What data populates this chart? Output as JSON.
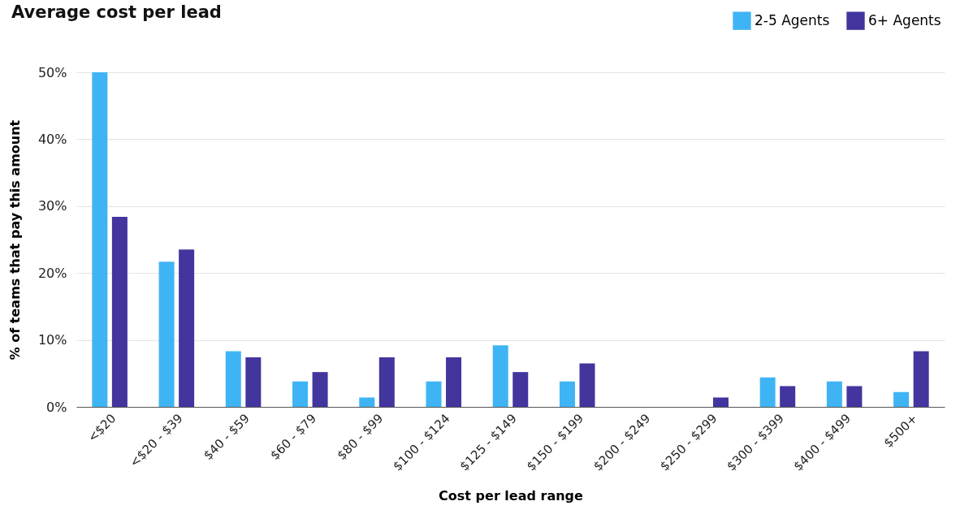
{
  "chart_data": {
    "type": "bar",
    "title": "Average cost per lead",
    "xlabel": "Cost per lead range",
    "ylabel": "% of teams that pay this amount",
    "categories": [
      "<$20",
      "<$20 - $39",
      "$40 - $59",
      "$60 - $79",
      "$80 - $99",
      "$100 - $124",
      "$125 - $149",
      "$150 - $199",
      "$200 - $249",
      "$250 - $299",
      "$300 - $399",
      "$400 - $499",
      "$500+"
    ],
    "series": [
      {
        "name": "2-5 Agents",
        "color": "#3fb4f5",
        "values": [
          50,
          21.7,
          8.3,
          3.8,
          1.4,
          3.8,
          9.2,
          3.8,
          0,
          0,
          4.4,
          3.8,
          2.2
        ]
      },
      {
        "name": "6+ Agents",
        "color": "#42359e",
        "values": [
          28.4,
          23.5,
          7.4,
          5.2,
          7.4,
          7.4,
          5.2,
          6.5,
          0,
          1.4,
          3.1,
          3.1,
          8.3
        ]
      }
    ],
    "ylim": [
      0,
      50
    ],
    "yticks": [
      {
        "value": 0,
        "label": "0%"
      },
      {
        "value": 10,
        "label": "10%"
      },
      {
        "value": 20,
        "label": "20%"
      },
      {
        "value": 30,
        "label": "30%"
      },
      {
        "value": 40,
        "label": "40%"
      },
      {
        "value": 50,
        "label": "50%"
      }
    ],
    "grid": "y",
    "legend": "top right"
  }
}
